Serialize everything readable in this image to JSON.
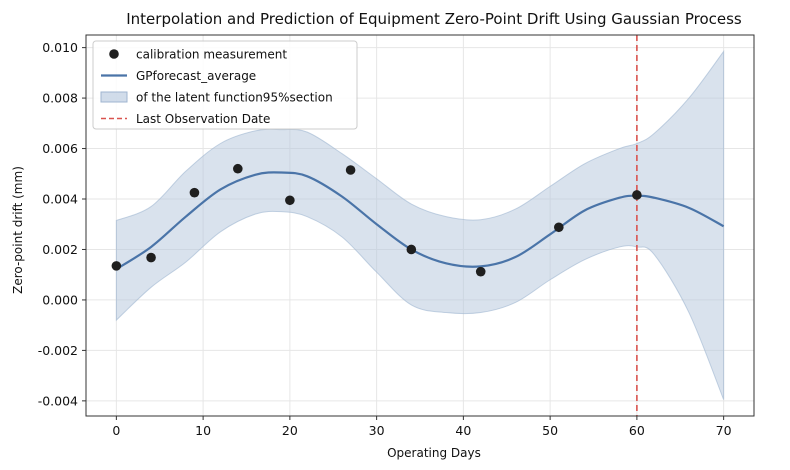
{
  "chart_data": {
    "type": "line",
    "title": "Interpolation and Prediction of Equipment Zero-Point Drift Using Gaussian Process",
    "xlabel": "Operating Days",
    "ylabel": "Zero-point drift (mm)",
    "xlim": [
      -3.5,
      73.5
    ],
    "ylim": [
      -0.0046,
      0.0105
    ],
    "xticks": [
      0,
      10,
      20,
      30,
      40,
      50,
      60,
      70
    ],
    "xtick_labels": [
      "0",
      "10",
      "20",
      "30",
      "40",
      "50",
      "60",
      "70"
    ],
    "yticks": [
      -0.004,
      -0.002,
      0.0,
      0.002,
      0.004,
      0.006,
      0.008,
      0.01
    ],
    "ytick_labels": [
      "-0.004",
      "-0.002",
      "0.000",
      "0.002",
      "0.004",
      "0.006",
      "0.008",
      "0.010"
    ],
    "grid": true,
    "legend_position": "top-left",
    "legend": [
      {
        "label": "calibration measurement",
        "kind": "marker"
      },
      {
        "label": "GPforecast_average",
        "kind": "line"
      },
      {
        "label": "of the latent function95%section",
        "kind": "band"
      },
      {
        "label": "Last Observation Date",
        "kind": "dashed"
      }
    ],
    "series": [
      {
        "name": "calibration measurement",
        "type": "scatter",
        "color": "#1f1f1f",
        "x": [
          0,
          4,
          9,
          14,
          20,
          27,
          34,
          42,
          51,
          60
        ],
        "y": [
          0.00135,
          0.00168,
          0.00425,
          0.0052,
          0.00395,
          0.00515,
          0.002,
          0.00112,
          0.00288,
          0.00416
        ]
      },
      {
        "name": "GPforecast_average",
        "type": "line",
        "color": "#4a74a8",
        "x": [
          0,
          4,
          8,
          12,
          16,
          19,
          22,
          26,
          30,
          34,
          38,
          42,
          46,
          50,
          54,
          58,
          60,
          62,
          66,
          70
        ],
        "y": [
          0.00122,
          0.0021,
          0.0033,
          0.00438,
          0.00496,
          0.00505,
          0.0049,
          0.0041,
          0.003,
          0.002,
          0.00145,
          0.00133,
          0.0017,
          0.0026,
          0.00355,
          0.00405,
          0.00413,
          0.00405,
          0.00365,
          0.00292
        ]
      },
      {
        "name": "of the latent function95%section",
        "type": "area",
        "color": "#b3c5dc",
        "x": [
          0,
          4,
          8,
          12,
          16,
          19,
          22,
          26,
          30,
          34,
          38,
          42,
          46,
          50,
          54,
          58,
          60,
          62,
          66,
          70
        ],
        "lower": [
          -0.0008,
          0.0005,
          0.0015,
          0.0027,
          0.0034,
          0.0035,
          0.0033,
          0.0025,
          0.0011,
          -0.0002,
          -0.0005,
          -0.0005,
          -0.0001,
          0.0008,
          0.0016,
          0.0021,
          0.0021,
          0.0018,
          -0.0005,
          -0.00395
        ]
      },
      {
        "name": "Last Observation Date",
        "type": "vline",
        "color": "#d9534f",
        "x": 60
      }
    ],
    "band_upper": [
      0.00315,
      0.0037,
      0.0051,
      0.0062,
      0.0067,
      0.00675,
      0.00665,
      0.0058,
      0.0048,
      0.0038,
      0.0033,
      0.00318,
      0.0036,
      0.0045,
      0.0054,
      0.006,
      0.0062,
      0.0066,
      0.008,
      0.00985
    ]
  }
}
